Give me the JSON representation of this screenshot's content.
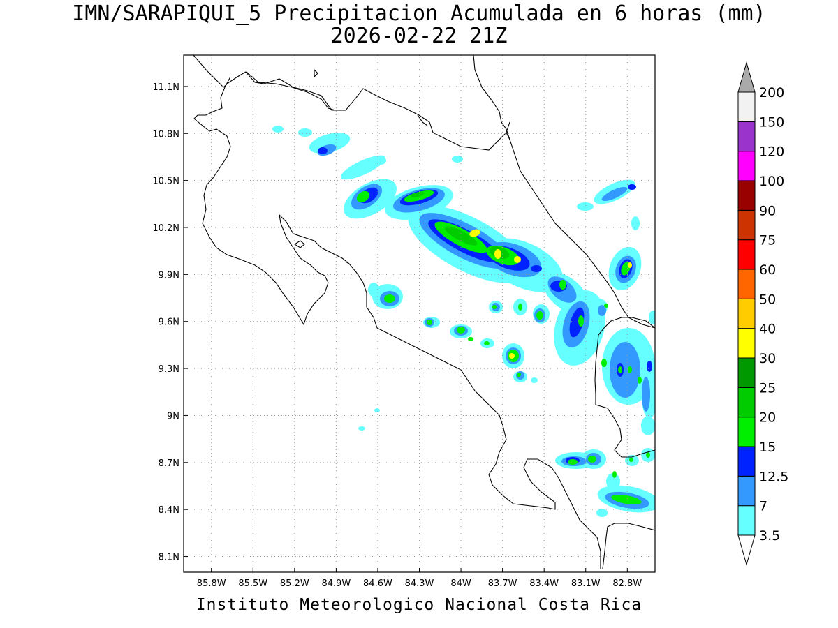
{
  "title": {
    "line1": "IMN/SARAPIQUI_5 Precipitacion Acumulada en 6 horas (mm)",
    "line2": "2026-02-22 21Z"
  },
  "footer": "Instituto Meteorologico Nacional Costa Rica",
  "axes": {
    "lat_labels": [
      "11.1N",
      "10.8N",
      "10.5N",
      "10.2N",
      "9.9N",
      "9.6N",
      "9.3N",
      "9N",
      "8.7N",
      "8.4N",
      "8.1N"
    ],
    "lon_labels": [
      "85.8W",
      "85.5W",
      "85.2W",
      "84.9W",
      "84.6W",
      "84.3W",
      "84W",
      "83.7W",
      "83.4W",
      "83.1W",
      "82.8W"
    ],
    "lat_range": [
      8.0,
      11.3
    ],
    "lon_range": [
      -86.0,
      -82.6
    ],
    "grid": true
  },
  "colorbar": {
    "units": "mm",
    "levels": [
      "3.5",
      "7",
      "12.5",
      "15",
      "20",
      "25",
      "30",
      "40",
      "50",
      "60",
      "75",
      "90",
      "100",
      "120",
      "150",
      "200"
    ],
    "colors": [
      "#66ffff",
      "#3399ff",
      "#0022ff",
      "#00ee00",
      "#00cc00",
      "#009900",
      "#ffff00",
      "#ffcc00",
      "#ff6600",
      "#ff0000",
      "#cc3300",
      "#990000",
      "#ff00ff",
      "#9933cc",
      "#f2f2f2"
    ],
    "over_color": "#aaaaaa",
    "under_color": "#ffffff"
  }
}
